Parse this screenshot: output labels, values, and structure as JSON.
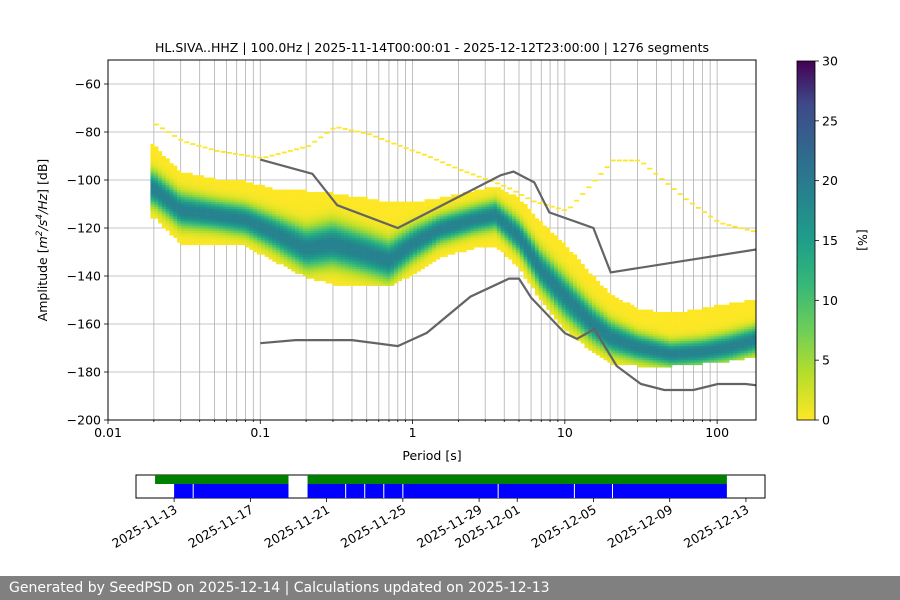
{
  "chart_data": {
    "type": "heatmap",
    "title": "HL.SIVA..HHZ | 100.0Hz | 2025-11-14T00:00:01 - 2025-12-12T23:00:00 | 1276 segments",
    "xlabel": "Period [s]",
    "ylabel_main": "Amplitude [",
    "ylabel_units": {
      "m": "m",
      "sup2": "2",
      "slash_s": "/s",
      "sup4": "4",
      "hz": "/Hz",
      "close": "] [dB]"
    },
    "x_scale": "log",
    "xlim": [
      0.01,
      180
    ],
    "ylim": [
      -200,
      -50
    ],
    "x_ticks": [
      {
        "value": 0.01,
        "label": "0.01"
      },
      {
        "value": 0.1,
        "label": "0.1"
      },
      {
        "value": 1,
        "label": "1"
      },
      {
        "value": 10,
        "label": "10"
      },
      {
        "value": 100,
        "label": "100"
      }
    ],
    "y_ticks": [
      {
        "value": -60,
        "label": "−60"
      },
      {
        "value": -80,
        "label": "−80"
      },
      {
        "value": -100,
        "label": "−100"
      },
      {
        "value": -120,
        "label": "−120"
      },
      {
        "value": -140,
        "label": "−140"
      },
      {
        "value": -160,
        "label": "−160"
      },
      {
        "value": -180,
        "label": "−180"
      },
      {
        "value": -200,
        "label": "−200"
      }
    ],
    "grid": true,
    "density_mode": [
      [
        0.02,
        -104
      ],
      [
        0.03,
        -113
      ],
      [
        0.05,
        -115
      ],
      [
        0.08,
        -117
      ],
      [
        0.12,
        -122
      ],
      [
        0.2,
        -129
      ],
      [
        0.3,
        -127
      ],
      [
        0.5,
        -131
      ],
      [
        0.7,
        -134
      ],
      [
        1.0,
        -127
      ],
      [
        1.5,
        -121
      ],
      [
        2.5,
        -117
      ],
      [
        3.5,
        -115
      ],
      [
        5,
        -124
      ],
      [
        7,
        -138
      ],
      [
        10,
        -149
      ],
      [
        15,
        -160
      ],
      [
        20,
        -166
      ],
      [
        30,
        -170
      ],
      [
        50,
        -173
      ],
      [
        80,
        -172
      ],
      [
        120,
        -170
      ],
      [
        180,
        -167
      ]
    ],
    "density_band_upper": [
      [
        0.02,
        -86
      ],
      [
        0.03,
        -97
      ],
      [
        0.05,
        -100
      ],
      [
        0.08,
        -101
      ],
      [
        0.12,
        -104
      ],
      [
        0.2,
        -105
      ],
      [
        0.3,
        -106
      ],
      [
        0.5,
        -108
      ],
      [
        0.7,
        -110
      ],
      [
        1.0,
        -110
      ],
      [
        1.5,
        -108
      ],
      [
        2.5,
        -105
      ],
      [
        3.5,
        -103
      ],
      [
        5,
        -108
      ],
      [
        7,
        -118
      ],
      [
        10,
        -127
      ],
      [
        15,
        -140
      ],
      [
        20,
        -148
      ],
      [
        30,
        -154
      ],
      [
        50,
        -156
      ],
      [
        80,
        -154
      ],
      [
        120,
        -152
      ],
      [
        180,
        -150
      ]
    ],
    "density_band_lower": [
      [
        0.02,
        -116
      ],
      [
        0.03,
        -127
      ],
      [
        0.05,
        -127
      ],
      [
        0.08,
        -128
      ],
      [
        0.12,
        -134
      ],
      [
        0.2,
        -141
      ],
      [
        0.3,
        -144
      ],
      [
        0.5,
        -144
      ],
      [
        0.7,
        -145
      ],
      [
        1.0,
        -140
      ],
      [
        1.5,
        -133
      ],
      [
        2.5,
        -129
      ],
      [
        3.5,
        -128
      ],
      [
        5,
        -137
      ],
      [
        7,
        -151
      ],
      [
        10,
        -163
      ],
      [
        15,
        -172
      ],
      [
        20,
        -177
      ],
      [
        30,
        -178
      ],
      [
        50,
        -178
      ],
      [
        80,
        -177
      ],
      [
        120,
        -176
      ],
      [
        180,
        -174
      ]
    ],
    "scatter_upper": [
      [
        0.02,
        -77
      ],
      [
        0.03,
        -84
      ],
      [
        0.05,
        -88
      ],
      [
        0.1,
        -91
      ],
      [
        0.2,
        -86
      ],
      [
        0.3,
        -78
      ],
      [
        0.5,
        -81
      ],
      [
        0.8,
        -86
      ],
      [
        1.2,
        -90
      ],
      [
        2,
        -96
      ],
      [
        3,
        -100
      ],
      [
        4,
        -103
      ],
      [
        6,
        -109
      ],
      [
        10,
        -113
      ],
      [
        20,
        -92
      ],
      [
        30,
        -92
      ],
      [
        60,
        -108
      ],
      [
        100,
        -118
      ],
      [
        180,
        -122
      ]
    ],
    "nlnm_label": "",
    "nhnm": [
      [
        0.1,
        -91.5
      ],
      [
        0.22,
        -97.4
      ],
      [
        0.32,
        -110.5
      ],
      [
        0.8,
        -120
      ],
      [
        3.8,
        -98
      ],
      [
        4.6,
        -96.5
      ],
      [
        6.3,
        -101
      ],
      [
        7.9,
        -113.5
      ],
      [
        15.4,
        -120
      ],
      [
        20,
        -138.5
      ],
      [
        354.8,
        -126
      ]
    ],
    "nlnm": [
      [
        0.1,
        -168
      ],
      [
        0.17,
        -166.7
      ],
      [
        0.4,
        -166.7
      ],
      [
        0.8,
        -169.2
      ],
      [
        1.24,
        -163.7
      ],
      [
        2.4,
        -148.6
      ],
      [
        4.3,
        -141.1
      ],
      [
        5,
        -141.1
      ],
      [
        6,
        -149
      ],
      [
        10,
        -163.8
      ],
      [
        12,
        -166.2
      ],
      [
        15.6,
        -162.1
      ],
      [
        21.9,
        -177.5
      ],
      [
        31.6,
        -185
      ],
      [
        45,
        -187.5
      ],
      [
        70,
        -187.5
      ],
      [
        101,
        -185
      ],
      [
        154,
        -185
      ],
      [
        328,
        -187.5
      ]
    ],
    "colorbar": {
      "label": "[%]",
      "min": 0,
      "max": 30,
      "ticks": [
        "0",
        "5",
        "10",
        "15",
        "20",
        "25",
        "30"
      ],
      "colormap": "viridis"
    },
    "timeline": {
      "date_ticks": [
        "2025-11-13",
        "2025-11-17",
        "2025-11-21",
        "2025-11-25",
        "2025-11-29",
        "2025-12-01",
        "2025-12-05",
        "2025-12-09",
        "2025-12-13"
      ],
      "xlim": [
        "2025-11-11",
        "2025-12-14"
      ],
      "green_segments": [
        [
          "2025-11-12",
          "2025-11-19"
        ],
        [
          "2025-11-20",
          "2025-12-12"
        ]
      ],
      "blue_segments": [
        [
          "2025-11-13",
          "2025-11-19"
        ],
        [
          "2025-11-20",
          "2025-12-12"
        ]
      ],
      "gap_marks": [
        "2025-11-14",
        "2025-11-22",
        "2025-11-23",
        "2025-11-24",
        "2025-11-25",
        "2025-11-30",
        "2025-12-04",
        "2025-12-06"
      ]
    }
  },
  "footer": {
    "text": "Generated by SeedPSD on 2025-12-14 | Calculations updated on 2025-12-13"
  },
  "colors": {
    "noise_model": "#646464",
    "grid": "#b0b0b0",
    "green_bar": "#008000",
    "blue_bar": "#0000ff",
    "footer_bg": "#808080"
  }
}
